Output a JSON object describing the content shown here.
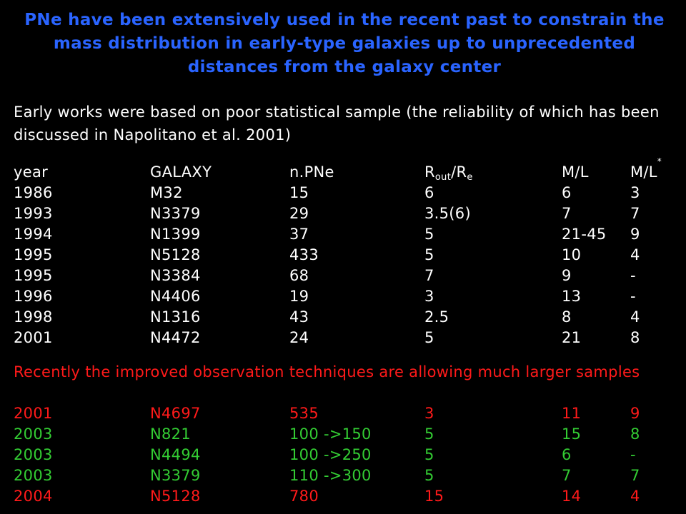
{
  "title": "PNe have been extensively used in the recent past to constrain the mass distribution in early-type galaxies up to unprecedented distances from the galaxy center",
  "intro": "Early works were based on poor statistical sample (the reliability of which has been discussed in Napolitano et al. 2001)",
  "header": {
    "year": "year",
    "galaxy": "GALAXY",
    "npne": "n.PNe",
    "rout_main": "R",
    "rout_sub": "out",
    "rout_sep": "/R",
    "re_sub": "e",
    "ml": "M/L",
    "mlstar_main": "M/L",
    "mlstar_sub": "*"
  },
  "early_rows": [
    {
      "year": "1986",
      "galaxy": "M32",
      "npne": "15",
      "rout": "6",
      "ml": "6",
      "mlstar": "3"
    },
    {
      "year": "1993",
      "galaxy": "N3379",
      "npne": "29",
      "rout": "3.5(6)",
      "ml": "7",
      "mlstar": "7"
    },
    {
      "year": "1994",
      "galaxy": "N1399",
      "npne": "37",
      "rout": "5",
      "ml": "21-45",
      "mlstar": "9"
    },
    {
      "year": "1995",
      "galaxy": "N5128",
      "npne": "433",
      "rout": "5",
      "ml": "10",
      "mlstar": "4"
    },
    {
      "year": "1995",
      "galaxy": "N3384",
      "npne": "68",
      "rout": "7",
      "ml": "9",
      "mlstar": "-"
    },
    {
      "year": "1996",
      "galaxy": "N4406",
      "npne": "19",
      "rout": "3",
      "ml": "13",
      "mlstar": "-"
    },
    {
      "year": "1998",
      "galaxy": "N1316",
      "npne": "43",
      "rout": "2.5",
      "ml": "8",
      "mlstar": "4"
    },
    {
      "year": "2001",
      "galaxy": "N4472",
      "npne": "24",
      "rout": "5",
      "ml": "21",
      "mlstar": "8"
    }
  ],
  "note": "Recently the improved observation techniques are allowing much larger samples",
  "recent_rows": [
    {
      "year": "2001",
      "galaxy": "N4697",
      "npne": "535",
      "rout": "3",
      "ml": "11",
      "mlstar": "9",
      "color": "#ff1a1a"
    },
    {
      "year": "2003",
      "galaxy": "N821",
      "npne": "100 ->150",
      "rout": "5",
      "ml": "15",
      "mlstar": "8",
      "color": "#33cc33"
    },
    {
      "year": "2003",
      "galaxy": "N4494",
      "npne": "100 ->250",
      "rout": "5",
      "ml": "6",
      "mlstar": "-",
      "color": "#33cc33"
    },
    {
      "year": "2003",
      "galaxy": "N3379",
      "npne": "110 ->300",
      "rout": "5",
      "ml": "7",
      "mlstar": "7",
      "color": "#33cc33"
    },
    {
      "year": "2004",
      "galaxy": "N5128",
      "npne": "780",
      "rout": "15",
      "ml": "14",
      "mlstar": "4",
      "color": "#ff1a1a"
    }
  ],
  "colors": {
    "background": "#000000",
    "title": "#2a64ff",
    "text": "#ffffff",
    "highlight_red": "#ff1a1a",
    "highlight_green": "#33cc33"
  }
}
